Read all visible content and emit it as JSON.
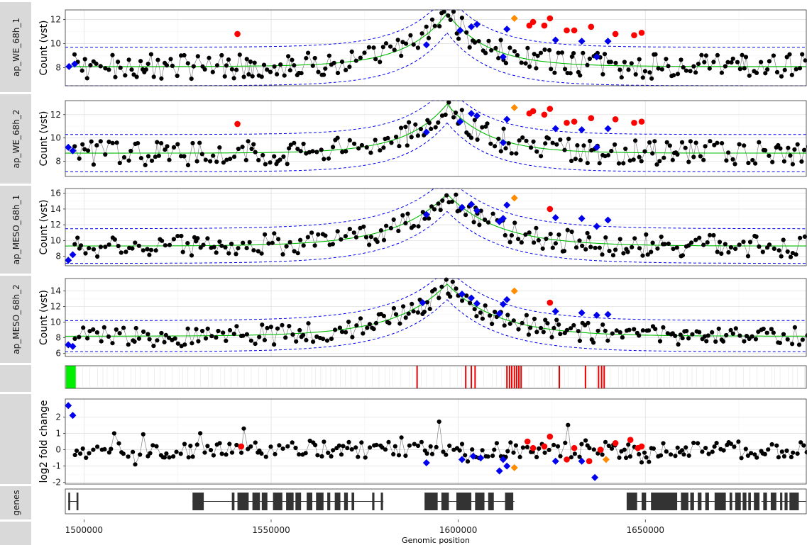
{
  "chart_data": {
    "type": "scatter",
    "xlabel": "Genomic position",
    "xlim": [
      1495000,
      1693000
    ],
    "x_ticks": [
      1500000,
      1550000,
      1600000,
      1650000
    ],
    "x_tick_labels": [
      "1500000",
      "1550000",
      "1600000",
      "1650000"
    ],
    "grid": true,
    "colors": {
      "data_point": "#000000",
      "line": "#808080",
      "fit": "#00bb00",
      "band": "#0000ee",
      "red_point": "#ff0000",
      "blue_point": "#0000ee",
      "orange_point": "#ff8c00",
      "strip_bg": "#d9d9d9",
      "gene_block": "#333333"
    },
    "panels": [
      {
        "strip": "ap_WE_68h_1",
        "ylabel": "Count (vst)",
        "ylim": [
          6.5,
          12.8
        ],
        "y_ticks": [
          8,
          10,
          12
        ],
        "fit": {
          "base": 8.1,
          "peak": 12.5,
          "center": 1597000,
          "scale": 12000,
          "band": 1.6
        },
        "markers": [
          {
            "x": 1496000,
            "y": 8.1,
            "c": "blue"
          },
          {
            "x": 1497500,
            "y": 8.3,
            "c": "blue"
          },
          {
            "x": 1541000,
            "y": 10.8,
            "c": "red"
          },
          {
            "x": 1591500,
            "y": 9.9,
            "c": "blue"
          },
          {
            "x": 1600500,
            "y": 11.1,
            "c": "blue"
          },
          {
            "x": 1603500,
            "y": 11.4,
            "c": "blue"
          },
          {
            "x": 1605000,
            "y": 11.6,
            "c": "blue"
          },
          {
            "x": 1612000,
            "y": 8.9,
            "c": "blue"
          },
          {
            "x": 1613000,
            "y": 11.2,
            "c": "blue"
          },
          {
            "x": 1615000,
            "y": 12.1,
            "c": "orange"
          },
          {
            "x": 1619000,
            "y": 11.5,
            "c": "red"
          },
          {
            "x": 1620000,
            "y": 11.8,
            "c": "red"
          },
          {
            "x": 1623000,
            "y": 11.5,
            "c": "red"
          },
          {
            "x": 1624500,
            "y": 12.1,
            "c": "red"
          },
          {
            "x": 1626000,
            "y": 10.3,
            "c": "blue"
          },
          {
            "x": 1629000,
            "y": 11.1,
            "c": "red"
          },
          {
            "x": 1631000,
            "y": 11.1,
            "c": "red"
          },
          {
            "x": 1633000,
            "y": 10.2,
            "c": "blue"
          },
          {
            "x": 1635500,
            "y": 11.4,
            "c": "red"
          },
          {
            "x": 1637000,
            "y": 8.9,
            "c": "blue"
          },
          {
            "x": 1640000,
            "y": 10.2,
            "c": "blue"
          },
          {
            "x": 1642000,
            "y": 10.8,
            "c": "red"
          },
          {
            "x": 1647000,
            "y": 10.7,
            "c": "red"
          },
          {
            "x": 1649000,
            "y": 10.9,
            "c": "red"
          }
        ]
      },
      {
        "strip": "ap_WE_68h_2",
        "ylabel": "Count (vst)",
        "ylim": [
          6.7,
          13.2
        ],
        "y_ticks": [
          8,
          10,
          12
        ],
        "fit": {
          "base": 8.7,
          "peak": 12.9,
          "center": 1597000,
          "scale": 12000,
          "band": 1.6
        },
        "markers": [
          {
            "x": 1495800,
            "y": 9.2,
            "c": "blue"
          },
          {
            "x": 1497000,
            "y": 8.9,
            "c": "blue"
          },
          {
            "x": 1541000,
            "y": 11.2,
            "c": "red"
          },
          {
            "x": 1591500,
            "y": 10.5,
            "c": "blue"
          },
          {
            "x": 1600500,
            "y": 11.4,
            "c": "blue"
          },
          {
            "x": 1603500,
            "y": 12.1,
            "c": "blue"
          },
          {
            "x": 1605000,
            "y": 11.9,
            "c": "blue"
          },
          {
            "x": 1612000,
            "y": 9.6,
            "c": "blue"
          },
          {
            "x": 1613000,
            "y": 11.6,
            "c": "blue"
          },
          {
            "x": 1615000,
            "y": 12.6,
            "c": "orange"
          },
          {
            "x": 1619000,
            "y": 12.1,
            "c": "red"
          },
          {
            "x": 1620000,
            "y": 12.3,
            "c": "red"
          },
          {
            "x": 1623000,
            "y": 12.0,
            "c": "red"
          },
          {
            "x": 1624500,
            "y": 12.5,
            "c": "red"
          },
          {
            "x": 1626000,
            "y": 10.8,
            "c": "blue"
          },
          {
            "x": 1629000,
            "y": 11.3,
            "c": "red"
          },
          {
            "x": 1631000,
            "y": 11.4,
            "c": "red"
          },
          {
            "x": 1633000,
            "y": 10.7,
            "c": "blue"
          },
          {
            "x": 1635500,
            "y": 11.7,
            "c": "red"
          },
          {
            "x": 1637000,
            "y": 9.2,
            "c": "blue"
          },
          {
            "x": 1640000,
            "y": 10.8,
            "c": "blue"
          },
          {
            "x": 1642000,
            "y": 11.6,
            "c": "red"
          },
          {
            "x": 1647000,
            "y": 11.3,
            "c": "red"
          },
          {
            "x": 1649000,
            "y": 11.4,
            "c": "red"
          }
        ]
      },
      {
        "strip": "ap_MESO_68h_1",
        "ylabel": "Count (vst)",
        "ylim": [
          6.8,
          16.6
        ],
        "y_ticks": [
          8,
          10,
          12,
          14,
          16
        ],
        "fit": {
          "base": 9.3,
          "peak": 15.9,
          "center": 1597000,
          "scale": 15000,
          "band": 2.2
        },
        "markers": [
          {
            "x": 1495800,
            "y": 7.5,
            "c": "blue"
          },
          {
            "x": 1497000,
            "y": 8.2,
            "c": "blue"
          },
          {
            "x": 1591500,
            "y": 13.3,
            "c": "blue"
          },
          {
            "x": 1601000,
            "y": 14.2,
            "c": "blue"
          },
          {
            "x": 1603500,
            "y": 14.6,
            "c": "blue"
          },
          {
            "x": 1605000,
            "y": 13.8,
            "c": "blue"
          },
          {
            "x": 1611000,
            "y": 12.4,
            "c": "blue"
          },
          {
            "x": 1612000,
            "y": 12.8,
            "c": "blue"
          },
          {
            "x": 1613000,
            "y": 14.5,
            "c": "blue"
          },
          {
            "x": 1615000,
            "y": 15.4,
            "c": "orange"
          },
          {
            "x": 1624500,
            "y": 14.0,
            "c": "red"
          },
          {
            "x": 1626000,
            "y": 12.9,
            "c": "blue"
          },
          {
            "x": 1633000,
            "y": 12.8,
            "c": "blue"
          },
          {
            "x": 1637000,
            "y": 11.8,
            "c": "blue"
          },
          {
            "x": 1640000,
            "y": 12.6,
            "c": "blue"
          }
        ]
      },
      {
        "strip": "ap_MESO_68h_2",
        "ylabel": "Count (vst)",
        "ylim": [
          5.6,
          15.6
        ],
        "y_ticks": [
          6,
          8,
          10,
          12,
          14
        ],
        "fit": {
          "base": 8.2,
          "peak": 14.9,
          "center": 1597000,
          "scale": 15000,
          "band": 2.0
        },
        "markers": [
          {
            "x": 1495800,
            "y": 7.1,
            "c": "blue"
          },
          {
            "x": 1497000,
            "y": 6.9,
            "c": "blue"
          },
          {
            "x": 1590500,
            "y": 12.5,
            "c": "blue"
          },
          {
            "x": 1601000,
            "y": 13.6,
            "c": "blue"
          },
          {
            "x": 1603500,
            "y": 13.1,
            "c": "blue"
          },
          {
            "x": 1605000,
            "y": 12.4,
            "c": "blue"
          },
          {
            "x": 1611000,
            "y": 11.1,
            "c": "blue"
          },
          {
            "x": 1612000,
            "y": 12.3,
            "c": "blue"
          },
          {
            "x": 1613000,
            "y": 12.9,
            "c": "blue"
          },
          {
            "x": 1615000,
            "y": 14.0,
            "c": "orange"
          },
          {
            "x": 1624500,
            "y": 12.5,
            "c": "red"
          },
          {
            "x": 1626000,
            "y": 11.4,
            "c": "blue"
          },
          {
            "x": 1633000,
            "y": 11.2,
            "c": "blue"
          },
          {
            "x": 1637000,
            "y": 10.9,
            "c": "blue"
          },
          {
            "x": 1640000,
            "y": 11.0,
            "c": "blue"
          }
        ]
      },
      {
        "strip": "",
        "kind": "track",
        "green_region": [
          1495200,
          1497800
        ],
        "red_lines": [
          1589000,
          1602000,
          1603500,
          1604500,
          1613000,
          1613700,
          1614300,
          1615000,
          1615600,
          1616200,
          1616800,
          1627000,
          1634000,
          1637500,
          1638300,
          1639000
        ]
      },
      {
        "strip": "",
        "ylabel": "log2 fold change",
        "ylim": [
          -2.1,
          3.1
        ],
        "y_ticks": [
          -2,
          -1,
          0,
          1,
          2
        ],
        "fit": null,
        "markers": [
          {
            "x": 1495800,
            "y": 2.7,
            "c": "blue"
          },
          {
            "x": 1497000,
            "y": 2.1,
            "c": "blue"
          },
          {
            "x": 1542000,
            "y": 0.2,
            "c": "red"
          },
          {
            "x": 1591500,
            "y": -0.8,
            "c": "blue"
          },
          {
            "x": 1601000,
            "y": -0.6,
            "c": "blue"
          },
          {
            "x": 1604000,
            "y": -0.4,
            "c": "blue"
          },
          {
            "x": 1606000,
            "y": -0.5,
            "c": "blue"
          },
          {
            "x": 1611000,
            "y": -1.3,
            "c": "blue"
          },
          {
            "x": 1612000,
            "y": -0.6,
            "c": "blue"
          },
          {
            "x": 1613000,
            "y": -1.0,
            "c": "blue"
          },
          {
            "x": 1615000,
            "y": -1.1,
            "c": "orange"
          },
          {
            "x": 1618500,
            "y": 0.5,
            "c": "red"
          },
          {
            "x": 1620000,
            "y": 0.1,
            "c": "red"
          },
          {
            "x": 1623000,
            "y": 0.2,
            "c": "red"
          },
          {
            "x": 1624500,
            "y": 0.8,
            "c": "red"
          },
          {
            "x": 1626000,
            "y": -0.7,
            "c": "blue"
          },
          {
            "x": 1629000,
            "y": -0.6,
            "c": "red"
          },
          {
            "x": 1631000,
            "y": 0.1,
            "c": "red"
          },
          {
            "x": 1633000,
            "y": -0.7,
            "c": "blue"
          },
          {
            "x": 1635000,
            "y": -0.7,
            "c": "red"
          },
          {
            "x": 1636500,
            "y": -1.7,
            "c": "blue"
          },
          {
            "x": 1638000,
            "y": 0.0,
            "c": "red"
          },
          {
            "x": 1639500,
            "y": -0.6,
            "c": "orange"
          },
          {
            "x": 1642000,
            "y": 0.4,
            "c": "red"
          },
          {
            "x": 1646000,
            "y": 0.6,
            "c": "red"
          },
          {
            "x": 1648000,
            "y": 0.1,
            "c": "red"
          },
          {
            "x": 1649000,
            "y": 0.2,
            "c": "red"
          }
        ]
      },
      {
        "strip": "genes",
        "kind": "genes",
        "genes": [
          {
            "start": 1495800,
            "end": 1498500,
            "exons": [
              [
                1495800,
                1496300
              ],
              [
                1498000,
                1498500
              ]
            ]
          },
          {
            "start": 1529000,
            "end": 1547000,
            "exons": [
              [
                1529000,
                1532000
              ],
              [
                1539500,
                1540200
              ],
              [
                1541000,
                1544000
              ],
              [
                1545000,
                1547000
              ]
            ]
          },
          {
            "start": 1547000,
            "end": 1580000,
            "exons": [
              [
                1547500,
                1549000
              ],
              [
                1550500,
                1553000
              ],
              [
                1554000,
                1556000
              ],
              [
                1556500,
                1558000
              ],
              [
                1559500,
                1561000
              ],
              [
                1562000,
                1564000
              ],
              [
                1565000,
                1565800
              ],
              [
                1567000,
                1568500
              ],
              [
                1569500,
                1570500
              ],
              [
                1571500,
                1572200
              ],
              [
                1577000,
                1577600
              ],
              [
                1579300,
                1579900
              ]
            ]
          },
          {
            "start": 1591000,
            "end": 1610000,
            "exons": [
              [
                1591000,
                1594500
              ],
              [
                1595500,
                1597500
              ],
              [
                1599500,
                1603500
              ],
              [
                1604500,
                1607000
              ],
              [
                1608000,
                1609500
              ]
            ]
          },
          {
            "start": 1610000,
            "end": 1615000,
            "exons": [
              [
                1612500,
                1614700
              ]
            ]
          },
          {
            "start": 1645000,
            "end": 1672000,
            "exons": [
              [
                1645000,
                1647800
              ],
              [
                1649000,
                1650200
              ],
              [
                1651500,
                1658500
              ],
              [
                1659500,
                1661500
              ],
              [
                1662000,
                1663000
              ],
              [
                1664000,
                1665000
              ],
              [
                1666000,
                1667000
              ],
              [
                1668500,
                1671500
              ]
            ]
          },
          {
            "start": 1672000,
            "end": 1680000,
            "exons": [
              [
                1672500,
                1673200
              ],
              [
                1674000,
                1675500
              ],
              [
                1676000,
                1677000
              ],
              [
                1677500,
                1678200
              ],
              [
                1679000,
                1680500
              ]
            ]
          },
          {
            "start": 1681000,
            "end": 1693000,
            "exons": [
              [
                1681500,
                1682500
              ],
              [
                1683500,
                1685000
              ],
              [
                1686000,
                1686600
              ],
              [
                1687200,
                1688000
              ],
              [
                1688500,
                1691000
              ]
            ]
          }
        ]
      },
      {
        "strip": "",
        "kind": "axis"
      }
    ]
  }
}
